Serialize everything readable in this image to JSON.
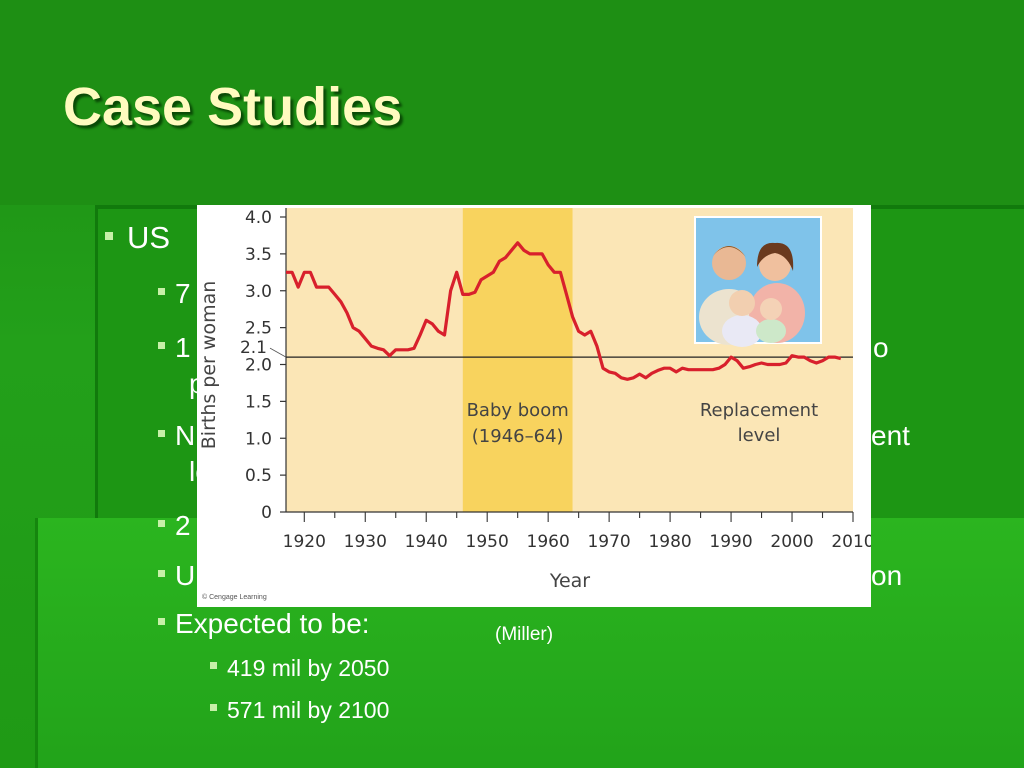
{
  "slide": {
    "title": "Case Studies",
    "caption": "(Miller)",
    "bullets": [
      {
        "level": 1,
        "text": "US"
      },
      {
        "level": 2,
        "text": "7"
      },
      {
        "level": 2,
        "text": "1"
      },
      {
        "level": 2,
        "text": "p"
      },
      {
        "level": 2,
        "text": "N"
      },
      {
        "level": 2,
        "text": "le"
      },
      {
        "level": 2,
        "text": "2"
      },
      {
        "level": 2,
        "text": "U"
      },
      {
        "level": 2,
        "text": "Expected to be:"
      },
      {
        "level": 3,
        "text": "419 mil by 2050"
      },
      {
        "level": 3,
        "text": "571 mil by 2100"
      }
    ],
    "occluded_fragments": {
      "right1": "o",
      "right2": "ent",
      "right3": "on"
    },
    "colors": {
      "title": "#fffbbf",
      "background": "#1e8f14",
      "bullet": "#c7f0a8"
    }
  },
  "chart_data": {
    "type": "line",
    "ylabel": "Births per woman",
    "xlabel": "Year",
    "credit": "© Cengage Learning",
    "yticks": [
      "0",
      "0.5",
      "1.0",
      "1.5",
      "2.0",
      "2.5",
      "3.0",
      "3.5",
      "4.0"
    ],
    "ytick_values": [
      0,
      0.5,
      1.0,
      1.5,
      2.0,
      2.5,
      3.0,
      3.5,
      4.0
    ],
    "xticks": [
      "1920",
      "1930",
      "1940",
      "1950",
      "1960",
      "1970",
      "1980",
      "1990",
      "2000",
      "2010"
    ],
    "xtick_values": [
      1920,
      1930,
      1940,
      1950,
      1960,
      1970,
      1980,
      1990,
      2000,
      2010
    ],
    "xlim": [
      1917,
      2010
    ],
    "ylim": [
      0,
      4.0
    ],
    "replacement_value_label": "2.1",
    "replacement_level": 2.1,
    "shaded_region": {
      "start": 1946,
      "end": 1964,
      "label_line1": "Baby boom",
      "label_line2": "(1946–64)"
    },
    "reference_label_line1": "Replacement",
    "reference_label_line2": "level",
    "series": [
      {
        "color": "#d8202c",
        "x": [
          1917,
          1918,
          1919,
          1920,
          1921,
          1922,
          1923,
          1924,
          1925,
          1926,
          1927,
          1928,
          1929,
          1930,
          1931,
          1932,
          1933,
          1934,
          1935,
          1936,
          1937,
          1938,
          1939,
          1940,
          1941,
          1942,
          1943,
          1944,
          1945,
          1946,
          1947,
          1948,
          1949,
          1950,
          1951,
          1952,
          1953,
          1954,
          1955,
          1956,
          1957,
          1958,
          1959,
          1960,
          1961,
          1962,
          1963,
          1964,
          1965,
          1966,
          1967,
          1968,
          1969,
          1970,
          1971,
          1972,
          1973,
          1974,
          1975,
          1976,
          1977,
          1978,
          1979,
          1980,
          1981,
          1982,
          1983,
          1984,
          1985,
          1986,
          1987,
          1988,
          1989,
          1990,
          1991,
          1992,
          1993,
          1994,
          1995,
          1996,
          1997,
          1998,
          1999,
          2000,
          2001,
          2002,
          2003,
          2004,
          2005,
          2006,
          2007,
          2008
        ],
        "values": [
          3.25,
          3.25,
          3.05,
          3.25,
          3.25,
          3.05,
          3.05,
          3.05,
          2.95,
          2.85,
          2.7,
          2.5,
          2.45,
          2.35,
          2.25,
          2.22,
          2.2,
          2.12,
          2.2,
          2.2,
          2.2,
          2.22,
          2.4,
          2.6,
          2.55,
          2.45,
          2.4,
          3.0,
          3.25,
          2.95,
          2.95,
          2.98,
          3.15,
          3.2,
          3.25,
          3.4,
          3.45,
          3.55,
          3.65,
          3.55,
          3.5,
          3.5,
          3.5,
          3.35,
          3.25,
          3.25,
          2.95,
          2.65,
          2.45,
          2.4,
          2.45,
          2.25,
          1.95,
          1.9,
          1.88,
          1.82,
          1.8,
          1.82,
          1.87,
          1.82,
          1.88,
          1.92,
          1.95,
          1.95,
          1.9,
          1.95,
          1.93,
          1.93,
          1.93,
          1.93,
          1.93,
          1.95,
          2.0,
          2.1,
          2.05,
          1.95,
          1.97,
          2.0,
          2.02,
          2.0,
          2.0,
          2.0,
          2.02,
          2.12,
          2.1,
          2.1,
          2.05,
          2.02,
          2.05,
          2.1,
          2.1,
          2.08
        ]
      }
    ]
  }
}
